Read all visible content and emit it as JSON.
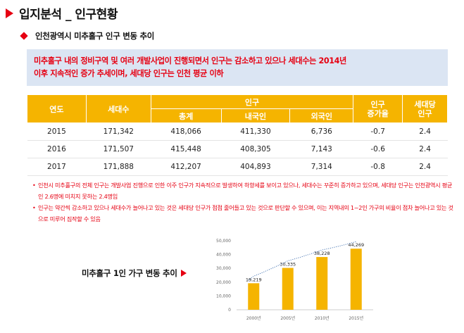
{
  "header": {
    "title": "입지분석 _ 인구현황",
    "subtitle": "인천광역시 미추홀구 인구 변동 추이"
  },
  "summary": {
    "line1": "미추홀구 내의 정비구역 및 여러 개발사업이 진행되면서 인구는 감소하고 있으나 세대수는 2014년",
    "line2": "이후 지속적인 증가 추세이며, 세대당 인구는 인천 평균 이하"
  },
  "table": {
    "headers": {
      "year": "연도",
      "households": "세대수",
      "population": "인구",
      "total": "총계",
      "domestic": "내국인",
      "foreign": "외국인",
      "growth": "인구\n증가율",
      "per_household": "세대당\n인구"
    },
    "rows": [
      {
        "year": "2015",
        "households": "171,342",
        "total": "418,066",
        "domestic": "411,330",
        "foreign": "6,736",
        "growth": "-0.7",
        "per_household": "2.4"
      },
      {
        "year": "2016",
        "households": "171,507",
        "total": "415,448",
        "domestic": "408,305",
        "foreign": "7,143",
        "growth": "-0.6",
        "per_household": "2.4"
      },
      {
        "year": "2017",
        "households": "171,888",
        "total": "412,207",
        "domestic": "404,893",
        "foreign": "7,314",
        "growth": "-0.8",
        "per_household": "2.4"
      }
    ]
  },
  "notes": [
    "인천시 미추홀구의 전체 인구는 개발사업 진행으로 인한 이주 인구가 지속적으로 발생하여 하향세를 보이고 있으나, 세대수는 꾸준히 증가하고 있으며, 세대당 인구는 인천광역시 평균인 2.6명에 미치지 못하는 2.4명임",
    "인구는 약간씩 감소하고 있으나 세대수가 늘어나고 있는 것은 세대당 인구가 점점 줄어들고 있는 것으로 판단할 수 있으며, 이는 지역내의 1~2인 가구의 비율이 점차 늘어나고 있는 것으로 미루어 짐작할 수 있음"
  ],
  "chart_label": "미추홀구 1인 가구 변동 추이",
  "colors": {
    "accent": "#e60012",
    "table_header": "#f5b400",
    "summary_bg": "#dbe5f3",
    "bar": "#f5b400",
    "trend": "#3f6fb0"
  },
  "chart_data": {
    "type": "bar",
    "categories": [
      "2000년",
      "2005년",
      "2010년",
      "2015년"
    ],
    "values": [
      19219,
      30335,
      38228,
      44269
    ],
    "data_labels": [
      "19,219",
      "30,335",
      "38,228",
      "44,269"
    ],
    "y_ticks": [
      "0",
      "10,000",
      "20,000",
      "30,000",
      "40,000",
      "50,000"
    ],
    "ylim": [
      0,
      50000
    ],
    "trendline": true,
    "grid": false,
    "title": "",
    "xlabel": "",
    "ylabel": ""
  }
}
